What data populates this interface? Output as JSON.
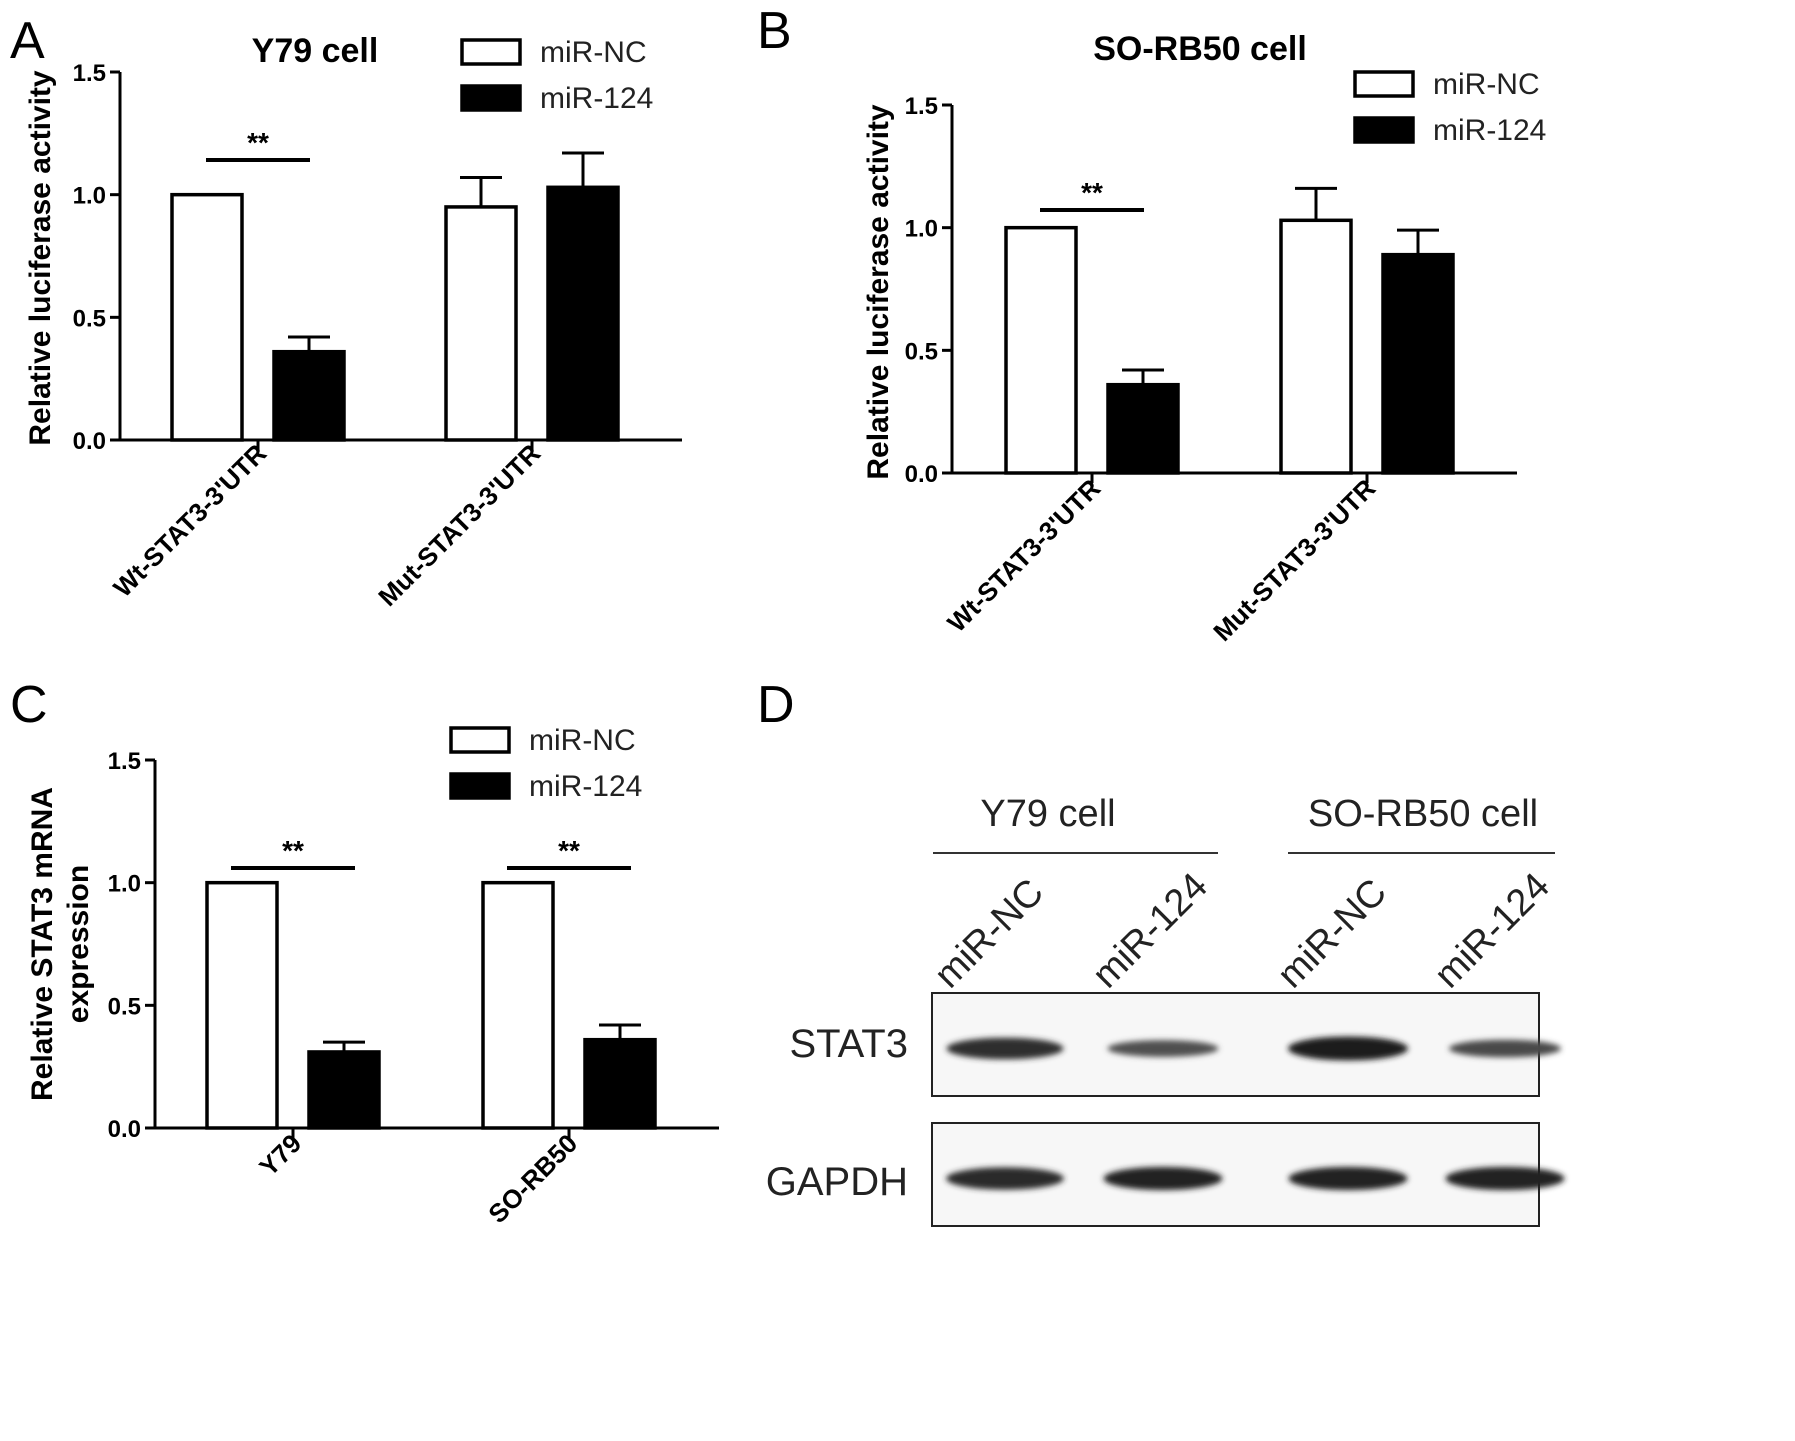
{
  "chart_data": [
    {
      "panel": "A",
      "type": "bar",
      "title": "Y79 cell",
      "ylabel": "Relative luciferase activity",
      "xlabel": "",
      "ylim": [
        0,
        1.5
      ],
      "yticks": [
        "0.0",
        "0.5",
        "1.0",
        "1.5"
      ],
      "categories": [
        "Wt-STAT3-3'UTR",
        "Mut-STAT3-3'UTR"
      ],
      "series": [
        {
          "name": "miR-NC",
          "fill": "#ffffff",
          "values": [
            1.0,
            0.95
          ],
          "errors": [
            0,
            0.12
          ]
        },
        {
          "name": "miR-124",
          "fill": "#000000",
          "values": [
            0.36,
            1.03
          ],
          "errors": [
            0.06,
            0.14
          ]
        }
      ],
      "annotations": [
        {
          "category": 0,
          "text": "**"
        }
      ],
      "legend_position": "top-right"
    },
    {
      "panel": "B",
      "type": "bar",
      "title": "SO-RB50 cell",
      "ylabel": "Relative luciferase activity",
      "xlabel": "",
      "ylim": [
        0,
        1.5
      ],
      "yticks": [
        "0.0",
        "0.5",
        "1.0",
        "1.5"
      ],
      "categories": [
        "Wt-STAT3-3'UTR",
        "Mut-STAT3-3'UTR"
      ],
      "series": [
        {
          "name": "miR-NC",
          "fill": "#ffffff",
          "values": [
            1.0,
            1.03
          ],
          "errors": [
            0,
            0.13
          ]
        },
        {
          "name": "miR-124",
          "fill": "#000000",
          "values": [
            0.36,
            0.89
          ],
          "errors": [
            0.06,
            0.1
          ]
        }
      ],
      "annotations": [
        {
          "category": 0,
          "text": "**"
        }
      ],
      "legend_position": "top-right"
    },
    {
      "panel": "C",
      "type": "bar",
      "title": "",
      "ylabel": [
        "Relative STAT3 mRNA",
        "expression"
      ],
      "xlabel": "",
      "ylim": [
        0,
        1.5
      ],
      "yticks": [
        "0.0",
        "0.5",
        "1.0",
        "1.5"
      ],
      "categories": [
        "Y79",
        "SO-RB50"
      ],
      "series": [
        {
          "name": "miR-NC",
          "fill": "#ffffff",
          "values": [
            1.0,
            1.0
          ],
          "errors": [
            0,
            0
          ]
        },
        {
          "name": "miR-124",
          "fill": "#000000",
          "values": [
            0.31,
            0.36
          ],
          "errors": [
            0.04,
            0.06
          ]
        }
      ],
      "annotations": [
        {
          "category": 0,
          "text": "**"
        },
        {
          "category": 1,
          "text": "**"
        }
      ],
      "legend_position": "top-right"
    }
  ],
  "blot": {
    "panel": "D",
    "groups": [
      "Y79 cell",
      "SO-RB50 cell"
    ],
    "lanes": [
      "miR-NC",
      "miR-124",
      "miR-NC",
      "miR-124"
    ],
    "rows": [
      {
        "label": "STAT3",
        "band_intensity": [
          0.85,
          0.55,
          1.0,
          0.6
        ]
      },
      {
        "label": "GAPDH",
        "band_intensity": [
          0.9,
          0.95,
          0.95,
          0.95
        ]
      }
    ]
  }
}
